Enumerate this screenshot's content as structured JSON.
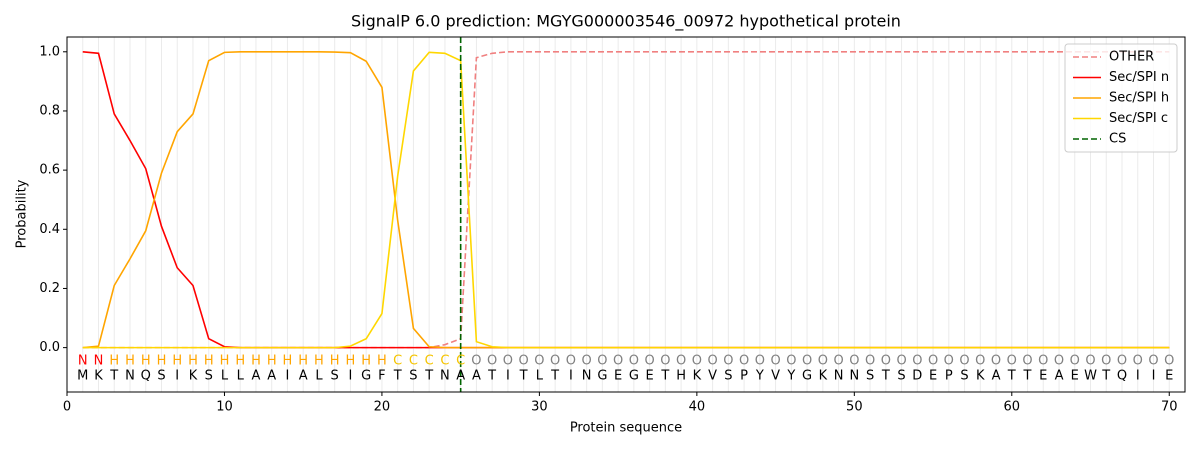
{
  "chart_data": {
    "type": "line",
    "title": "SignalP 6.0 prediction: MGYG000003546_00972 hypothetical protein",
    "xlabel": "Protein sequence",
    "ylabel": "Probability",
    "x": [
      1,
      2,
      3,
      4,
      5,
      6,
      7,
      8,
      9,
      10,
      11,
      12,
      13,
      14,
      15,
      16,
      17,
      18,
      19,
      20,
      21,
      22,
      23,
      24,
      25,
      26,
      27,
      28,
      29,
      30,
      31,
      32,
      33,
      34,
      35,
      36,
      37,
      38,
      39,
      40,
      41,
      42,
      43,
      44,
      45,
      46,
      47,
      48,
      49,
      50,
      51,
      52,
      53,
      54,
      55,
      56,
      57,
      58,
      59,
      60,
      61,
      62,
      63,
      64,
      65,
      66,
      67,
      68,
      69,
      70
    ],
    "sequence": [
      "M",
      "K",
      "T",
      "N",
      "Q",
      "S",
      "I",
      "K",
      "S",
      "L",
      "L",
      "A",
      "A",
      "I",
      "A",
      "L",
      "S",
      "I",
      "G",
      "F",
      "T",
      "S",
      "T",
      "N",
      "A",
      "A",
      "T",
      "I",
      "T",
      "L",
      "T",
      "I",
      "N",
      "G",
      "E",
      "G",
      "E",
      "T",
      "H",
      "K",
      "V",
      "S",
      "P",
      "Y",
      "V",
      "Y",
      "G",
      "K",
      "N",
      "N",
      "S",
      "T",
      "S",
      "D",
      "E",
      "P",
      "S",
      "K",
      "A",
      "T",
      "T",
      "E",
      "A",
      "E",
      "W",
      "T",
      "Q",
      "I",
      "I",
      "E"
    ],
    "labels": [
      "N",
      "N",
      "H",
      "H",
      "H",
      "H",
      "H",
      "H",
      "H",
      "H",
      "H",
      "H",
      "H",
      "H",
      "H",
      "H",
      "H",
      "H",
      "H",
      "H",
      "C",
      "C",
      "C",
      "C",
      "C",
      "O",
      "O",
      "O",
      "O",
      "O",
      "O",
      "O",
      "O",
      "O",
      "O",
      "O",
      "O",
      "O",
      "O",
      "O",
      "O",
      "O",
      "O",
      "O",
      "O",
      "O",
      "O",
      "O",
      "O",
      "O",
      "O",
      "O",
      "O",
      "O",
      "O",
      "O",
      "O",
      "O",
      "O",
      "O",
      "O",
      "O",
      "O",
      "O",
      "O",
      "O",
      "O",
      "O",
      "O",
      "O"
    ],
    "label_colors": {
      "N": "red",
      "H": "orange",
      "C": "#f5c400",
      "O": "gray"
    },
    "series": [
      {
        "name": "OTHER",
        "color": "#f08080",
        "dash": true,
        "values": [
          0,
          0,
          0,
          0,
          0,
          0,
          0,
          0,
          0,
          0,
          0,
          0,
          0,
          0,
          0,
          0,
          0,
          0,
          0,
          0,
          0,
          0,
          0,
          0.01,
          0.03,
          0.98,
          0.995,
          1,
          1,
          1,
          1,
          1,
          1,
          1,
          1,
          1,
          1,
          1,
          1,
          1,
          1,
          1,
          1,
          1,
          1,
          1,
          1,
          1,
          1,
          1,
          1,
          1,
          1,
          1,
          1,
          1,
          1,
          1,
          1,
          1,
          1,
          1,
          1,
          1,
          1,
          1,
          1,
          1,
          1,
          1
        ]
      },
      {
        "name": "Sec/SPI n",
        "color": "red",
        "dash": false,
        "values": [
          1,
          0.995,
          0.79,
          0.7,
          0.605,
          0.41,
          0.27,
          0.21,
          0.03,
          0.003,
          0,
          0,
          0,
          0,
          0,
          0,
          0,
          0,
          0,
          0,
          0,
          0,
          0,
          0,
          0,
          0,
          0,
          0,
          0,
          0,
          0,
          0,
          0,
          0,
          0,
          0,
          0,
          0,
          0,
          0,
          0,
          0,
          0,
          0,
          0,
          0,
          0,
          0,
          0,
          0,
          0,
          0,
          0,
          0,
          0,
          0,
          0,
          0,
          0,
          0,
          0,
          0,
          0,
          0,
          0,
          0,
          0,
          0,
          0,
          0
        ]
      },
      {
        "name": "Sec/SPI h",
        "color": "orange",
        "dash": false,
        "values": [
          0,
          0.005,
          0.21,
          0.3,
          0.395,
          0.59,
          0.73,
          0.79,
          0.97,
          0.998,
          1,
          1,
          1,
          1,
          1,
          1,
          0.999,
          0.997,
          0.968,
          0.88,
          0.43,
          0.065,
          0.003,
          0,
          0,
          0,
          0,
          0,
          0,
          0,
          0,
          0,
          0,
          0,
          0,
          0,
          0,
          0,
          0,
          0,
          0,
          0,
          0,
          0,
          0,
          0,
          0,
          0,
          0,
          0,
          0,
          0,
          0,
          0,
          0,
          0,
          0,
          0,
          0,
          0,
          0,
          0,
          0,
          0,
          0,
          0,
          0,
          0,
          0,
          0
        ]
      },
      {
        "name": "Sec/SPI c",
        "color": "gold",
        "dash": false,
        "values": [
          0,
          0,
          0,
          0,
          0,
          0,
          0,
          0,
          0,
          0,
          0,
          0,
          0,
          0,
          0,
          0,
          0,
          0.005,
          0.03,
          0.115,
          0.58,
          0.935,
          0.998,
          0.995,
          0.97,
          0.02,
          0.003,
          0,
          0,
          0,
          0,
          0,
          0,
          0,
          0,
          0,
          0,
          0,
          0,
          0,
          0,
          0,
          0,
          0,
          0,
          0,
          0,
          0,
          0,
          0,
          0,
          0,
          0,
          0,
          0,
          0,
          0,
          0,
          0,
          0,
          0,
          0,
          0,
          0,
          0,
          0,
          0,
          0,
          0,
          0
        ]
      }
    ],
    "cs": {
      "name": "CS",
      "color": "darkgreen",
      "x": 25
    },
    "xlim": [
      0,
      71
    ],
    "ylim": [
      -0.15,
      1.05
    ],
    "xticks": [
      0,
      10,
      20,
      30,
      40,
      50,
      60,
      70
    ],
    "yticks": [
      {
        "value": 0,
        "label": "0.0"
      },
      {
        "value": 0.2,
        "label": "0.2"
      },
      {
        "value": 0.4,
        "label": "0.4"
      },
      {
        "value": 0.6,
        "label": "0.6"
      },
      {
        "value": 0.8,
        "label": "0.8"
      },
      {
        "value": 1,
        "label": "1.0"
      }
    ],
    "legend": "upper right"
  }
}
